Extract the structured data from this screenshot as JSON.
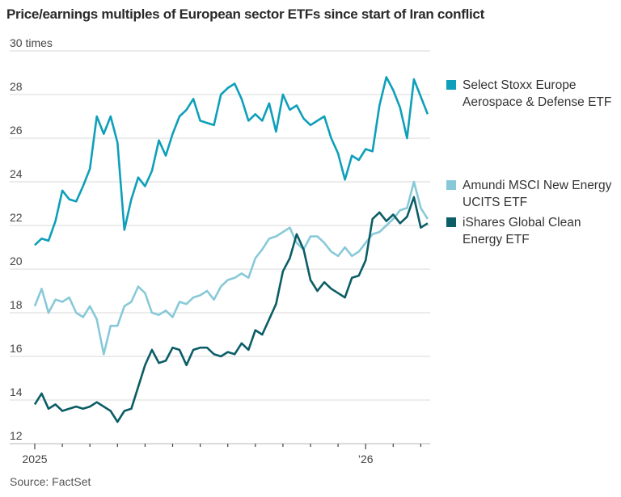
{
  "title": "Price/earnings multiples of European sector ETFs since start of Iran conflict",
  "source": "Source: FactSet",
  "chart_data": {
    "type": "line",
    "title": "Price/earnings multiples of European sector ETFs since start of Iran conflict",
    "xlabel": "",
    "ylabel": "times",
    "ylim": [
      12,
      30
    ],
    "yticks": [
      12,
      14,
      16,
      18,
      20,
      22,
      24,
      26,
      28,
      30
    ],
    "ytick_labels": [
      "12",
      "14",
      "16",
      "18",
      "20",
      "22",
      "24",
      "26",
      "28",
      "30 times"
    ],
    "xlim": [
      0,
      14.5
    ],
    "x_unit": "months since Jan 2025",
    "xticks": [
      0,
      1,
      2,
      3,
      4,
      5,
      6,
      7,
      8,
      9,
      10,
      11,
      12,
      13,
      14
    ],
    "xtick_labels": [
      {
        "x": 0,
        "label": "2025"
      },
      {
        "x": 12,
        "label": "’26"
      }
    ],
    "grid": true,
    "legend_position": "right",
    "x": [
      0,
      0.25,
      0.5,
      0.75,
      1,
      1.25,
      1.5,
      1.75,
      2,
      2.25,
      2.5,
      2.75,
      3,
      3.25,
      3.5,
      3.75,
      4,
      4.25,
      4.5,
      4.75,
      5,
      5.25,
      5.5,
      5.75,
      6,
      6.25,
      6.5,
      6.75,
      7,
      7.25,
      7.5,
      7.75,
      8,
      8.25,
      8.5,
      8.75,
      9,
      9.25,
      9.5,
      9.75,
      10,
      10.25,
      10.5,
      10.75,
      11,
      11.25,
      11.5,
      11.75,
      12,
      12.25,
      12.5,
      12.75,
      13,
      13.25,
      13.5,
      13.75,
      14,
      14.25
    ],
    "series": [
      {
        "name": "Select Stoxx Europe Aerospace & Defense ETF",
        "color": "#0e9fba",
        "values": [
          21.1,
          21.4,
          21.3,
          22.2,
          23.6,
          23.2,
          23.1,
          23.8,
          24.6,
          27.0,
          26.2,
          27.0,
          25.8,
          21.8,
          23.2,
          24.2,
          23.8,
          24.5,
          25.9,
          25.2,
          26.2,
          27.0,
          27.3,
          27.8,
          26.8,
          26.7,
          26.6,
          28.0,
          28.3,
          28.5,
          27.8,
          26.8,
          27.1,
          26.8,
          27.6,
          26.3,
          28.0,
          27.3,
          27.5,
          26.9,
          26.6,
          26.8,
          27.0,
          26.0,
          25.3,
          24.1,
          25.2,
          25.0,
          25.5,
          25.4,
          27.5,
          28.8,
          28.2,
          27.4,
          26.0,
          28.7,
          27.9,
          27.1
        ]
      },
      {
        "name": "Amundi MSCI New Energy UCITS ETF",
        "color": "#88c9d8",
        "values": [
          18.3,
          19.1,
          18.0,
          18.6,
          18.5,
          18.7,
          18.0,
          17.8,
          18.3,
          17.7,
          16.1,
          17.4,
          17.4,
          18.3,
          18.5,
          19.2,
          18.9,
          18.0,
          17.9,
          18.1,
          17.8,
          18.5,
          18.4,
          18.7,
          18.8,
          19.0,
          18.6,
          19.2,
          19.5,
          19.6,
          19.8,
          19.6,
          20.5,
          20.9,
          21.4,
          21.5,
          21.7,
          21.9,
          21.2,
          20.9,
          21.5,
          21.5,
          21.2,
          20.8,
          20.6,
          21.0,
          20.6,
          20.8,
          21.2,
          21.6,
          21.7,
          22.0,
          22.3,
          22.7,
          22.8,
          24.0,
          22.8,
          22.3
        ]
      },
      {
        "name": "iShares Global Clean Energy ETF",
        "color": "#0b5d66",
        "values": [
          13.8,
          14.3,
          13.6,
          13.8,
          13.5,
          13.6,
          13.7,
          13.6,
          13.7,
          13.9,
          13.7,
          13.5,
          13.0,
          13.5,
          13.6,
          14.6,
          15.6,
          16.3,
          15.7,
          15.8,
          16.4,
          16.3,
          15.6,
          16.3,
          16.4,
          16.4,
          16.1,
          16.0,
          16.2,
          16.1,
          16.6,
          16.3,
          17.2,
          17.0,
          17.7,
          18.4,
          19.9,
          20.5,
          21.6,
          20.9,
          19.5,
          19.0,
          19.4,
          19.1,
          18.9,
          18.7,
          19.6,
          19.7,
          20.4,
          22.3,
          22.6,
          22.2,
          22.5,
          22.1,
          22.4,
          23.3,
          21.9,
          22.1
        ]
      }
    ]
  },
  "legend": [
    {
      "label": "Select Stoxx Europe Aerospace & Defense ETF",
      "color": "#0e9fba"
    },
    {
      "label": "Amundi MSCI New Energy UCITS ETF",
      "color": "#88c9d8"
    },
    {
      "label": "iShares Global Clean Energy ETF",
      "color": "#0b5d66"
    }
  ]
}
